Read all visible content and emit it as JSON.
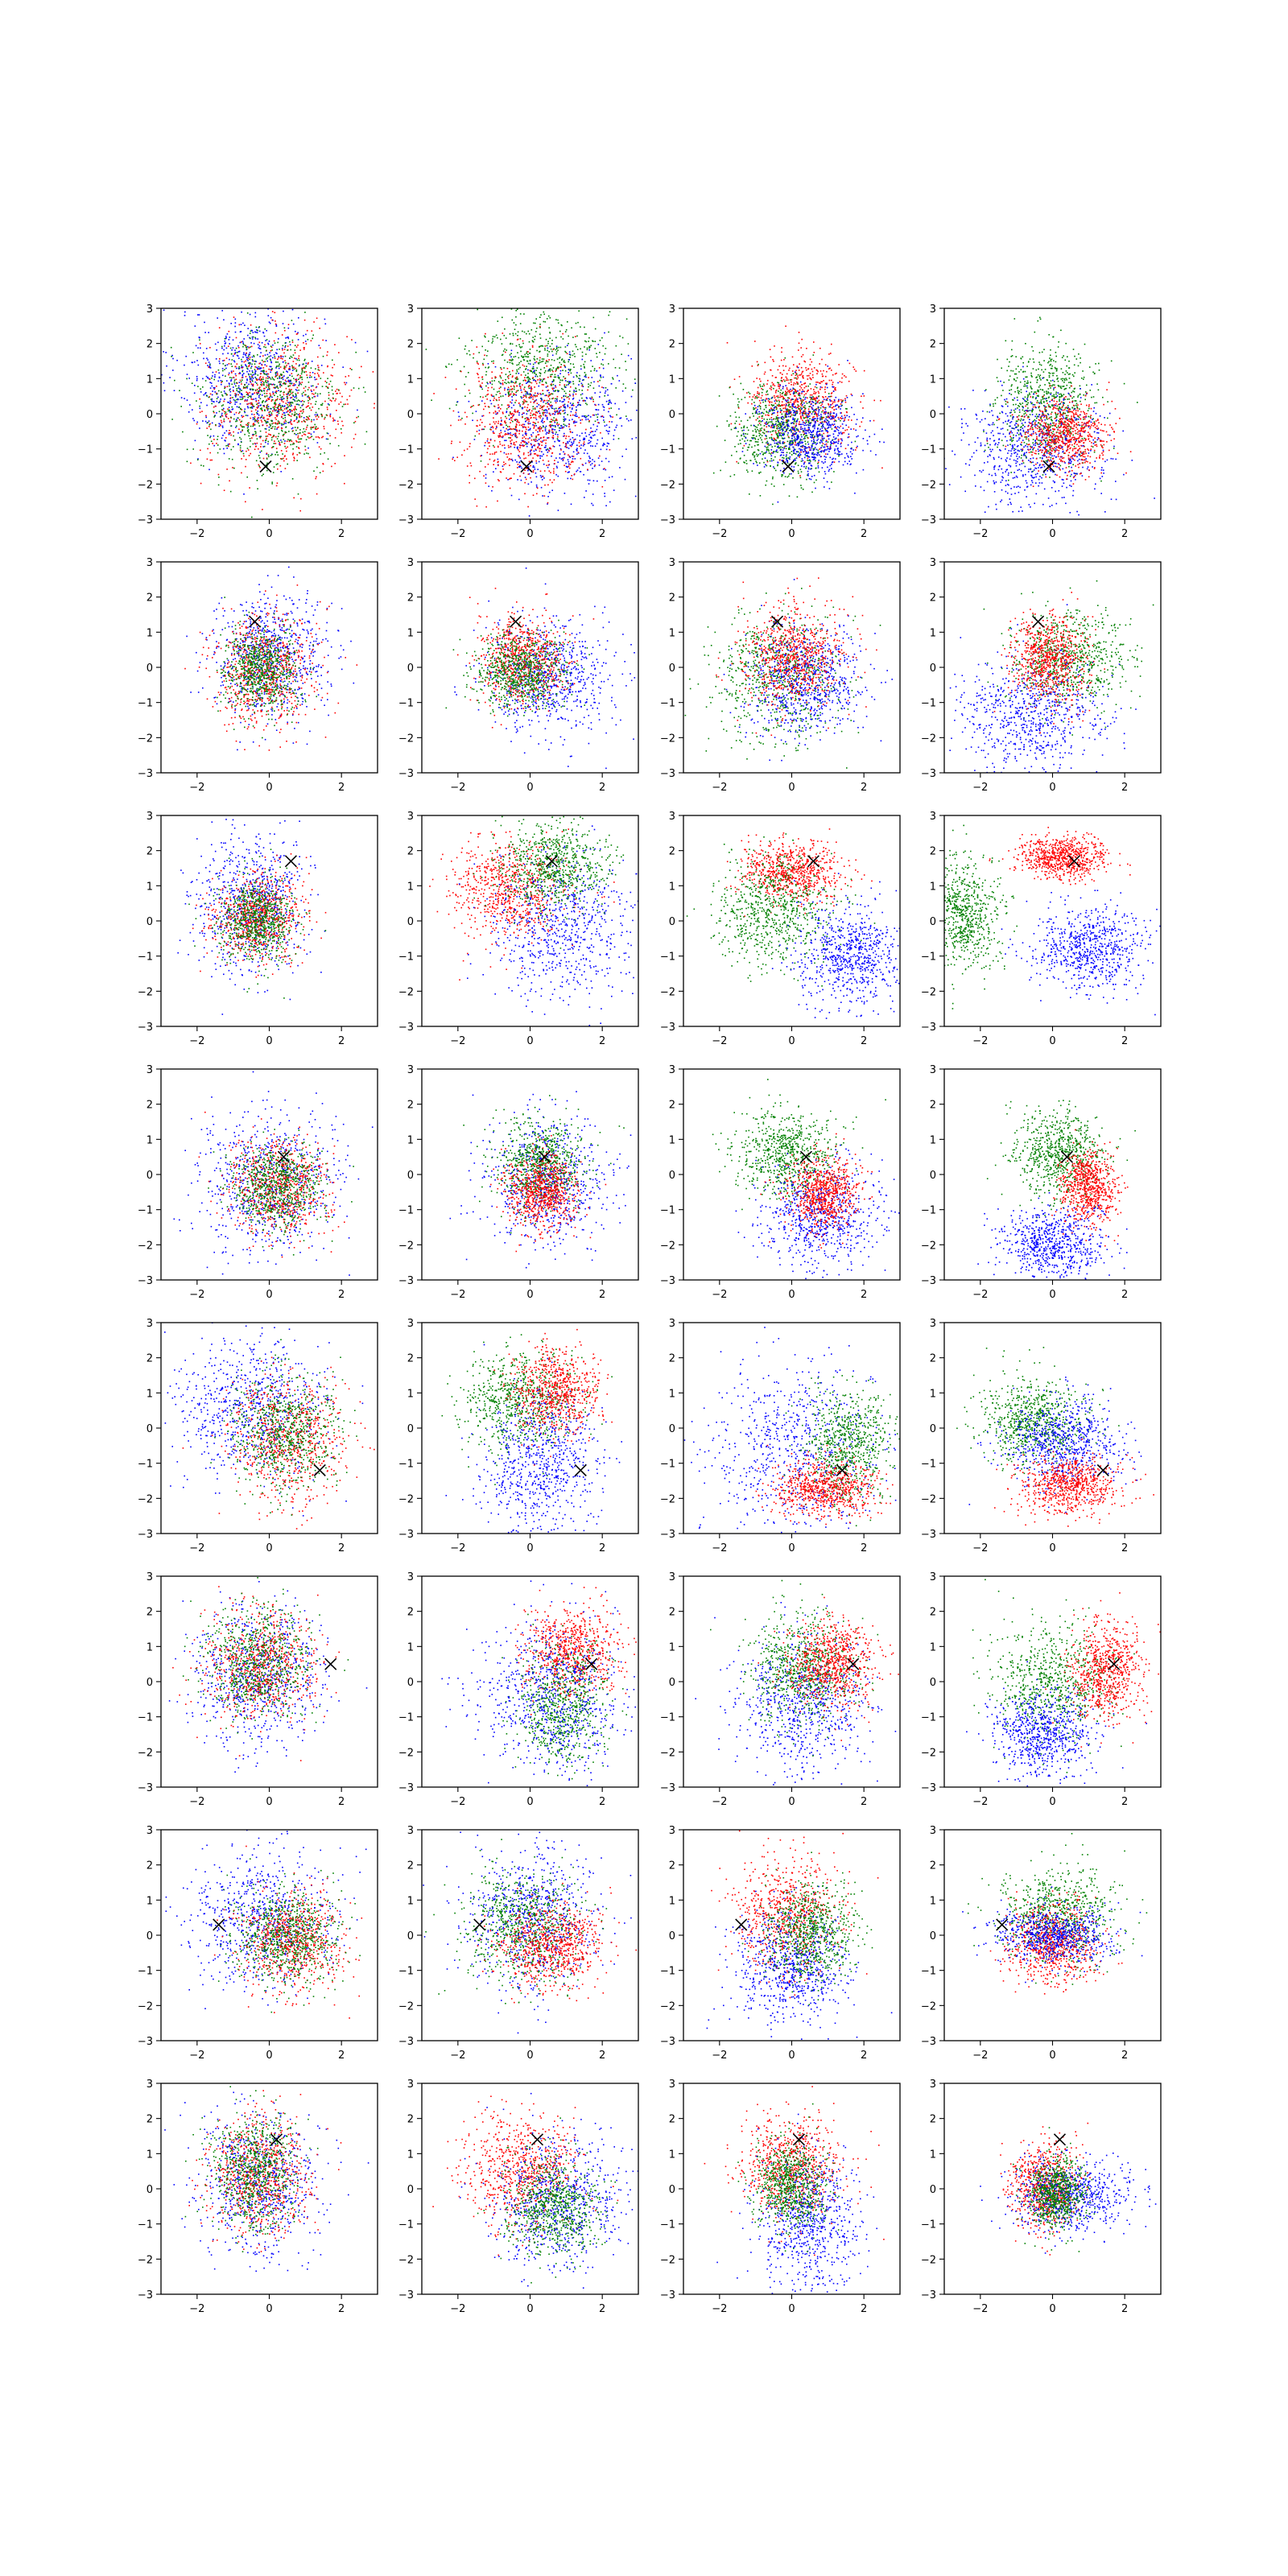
{
  "chart_data": {
    "type": "scatter",
    "layout": {
      "rows": 8,
      "cols": 4
    },
    "xlim": [
      -3,
      3
    ],
    "ylim": [
      -3,
      3
    ],
    "xticks": [
      -2,
      0,
      2
    ],
    "yticks": [
      -3,
      -2,
      -1,
      0,
      1,
      2,
      3
    ],
    "xtick_labels": [
      "−2",
      "0",
      "2"
    ],
    "ytick_labels": [
      "−3",
      "−2",
      "−1",
      "0",
      "1",
      "2",
      "3"
    ],
    "series_colors": {
      "blue": "#0000ff",
      "green": "#008000",
      "red": "#ff0000",
      "marker": "#000000"
    },
    "points_per_cluster": 700,
    "rows": [
      {
        "marker": [
          -0.1,
          -1.5
        ],
        "panels": [
          [
            {
              "color": "blue",
              "cx": -0.5,
              "cy": 1.0,
              "sx": 1.0,
              "sy": 1.0
            },
            {
              "color": "red",
              "cx": 0.3,
              "cy": 0.3,
              "sx": 1.0,
              "sy": 1.0
            },
            {
              "color": "green",
              "cx": 0.0,
              "cy": 0.3,
              "sx": 1.0,
              "sy": 1.0
            }
          ],
          [
            {
              "color": "green",
              "cx": 0.3,
              "cy": 1.3,
              "sx": 1.0,
              "sy": 0.9
            },
            {
              "color": "blue",
              "cx": 0.8,
              "cy": -0.4,
              "sx": 1.0,
              "sy": 0.9
            },
            {
              "color": "red",
              "cx": -0.1,
              "cy": -0.2,
              "sx": 0.9,
              "sy": 0.9
            }
          ],
          [
            {
              "color": "red",
              "cx": 0.3,
              "cy": 0.3,
              "sx": 0.7,
              "sy": 0.7
            },
            {
              "color": "green",
              "cx": -0.3,
              "cy": -0.5,
              "sx": 0.7,
              "sy": 0.7
            },
            {
              "color": "blue",
              "cx": 0.5,
              "cy": -0.6,
              "sx": 0.7,
              "sy": 0.6
            }
          ],
          [
            {
              "color": "green",
              "cx": -0.2,
              "cy": 0.3,
              "sx": 0.7,
              "sy": 0.8
            },
            {
              "color": "blue",
              "cx": -0.5,
              "cy": -1.0,
              "sx": 1.0,
              "sy": 0.8
            },
            {
              "color": "red",
              "cx": 0.3,
              "cy": -0.6,
              "sx": 0.6,
              "sy": 0.5
            }
          ]
        ]
      },
      {
        "marker": [
          -0.4,
          1.3
        ],
        "panels": [
          [
            {
              "color": "blue",
              "cx": 0.0,
              "cy": 0.3,
              "sx": 0.8,
              "sy": 0.9
            },
            {
              "color": "red",
              "cx": -0.2,
              "cy": -0.1,
              "sx": 0.7,
              "sy": 0.8
            },
            {
              "color": "green",
              "cx": -0.2,
              "cy": -0.1,
              "sx": 0.5,
              "sy": 0.6
            }
          ],
          [
            {
              "color": "blue",
              "cx": 0.5,
              "cy": -0.3,
              "sx": 0.9,
              "sy": 0.8
            },
            {
              "color": "red",
              "cx": -0.2,
              "cy": 0.2,
              "sx": 0.6,
              "sy": 0.6
            },
            {
              "color": "green",
              "cx": -0.3,
              "cy": -0.1,
              "sx": 0.6,
              "sy": 0.5
            }
          ],
          [
            {
              "color": "green",
              "cx": -0.4,
              "cy": -0.3,
              "sx": 0.9,
              "sy": 0.9
            },
            {
              "color": "blue",
              "cx": 0.3,
              "cy": -0.4,
              "sx": 0.8,
              "sy": 0.8
            },
            {
              "color": "red",
              "cx": 0.0,
              "cy": 0.3,
              "sx": 0.7,
              "sy": 0.7
            }
          ],
          [
            {
              "color": "green",
              "cx": 0.5,
              "cy": 0.2,
              "sx": 0.8,
              "sy": 0.7
            },
            {
              "color": "blue",
              "cx": -0.6,
              "cy": -1.3,
              "sx": 1.0,
              "sy": 0.8
            },
            {
              "color": "red",
              "cx": -0.1,
              "cy": 0.2,
              "sx": 0.5,
              "sy": 0.6
            }
          ]
        ]
      },
      {
        "marker": [
          0.6,
          1.7
        ],
        "panels": [
          [
            {
              "color": "blue",
              "cx": -0.5,
              "cy": 0.5,
              "sx": 0.8,
              "sy": 1.0
            },
            {
              "color": "red",
              "cx": -0.3,
              "cy": 0.1,
              "sx": 0.6,
              "sy": 0.6
            },
            {
              "color": "green",
              "cx": -0.3,
              "cy": 0.0,
              "sx": 0.5,
              "sy": 0.6
            }
          ],
          [
            {
              "color": "red",
              "cx": -0.6,
              "cy": 0.9,
              "sx": 0.8,
              "sy": 0.7
            },
            {
              "color": "blue",
              "cx": 1.0,
              "cy": -0.2,
              "sx": 1.0,
              "sy": 1.0
            },
            {
              "color": "green",
              "cx": 0.6,
              "cy": 1.6,
              "sx": 0.7,
              "sy": 0.6
            }
          ],
          [
            {
              "color": "red",
              "cx": 0.0,
              "cy": 1.4,
              "sx": 0.7,
              "sy": 0.4
            },
            {
              "color": "green",
              "cx": -0.5,
              "cy": 0.3,
              "sx": 0.8,
              "sy": 0.8
            },
            {
              "color": "blue",
              "cx": 1.6,
              "cy": -1.0,
              "sx": 0.7,
              "sy": 0.7
            }
          ],
          [
            {
              "color": "red",
              "cx": 0.3,
              "cy": 1.8,
              "sx": 0.6,
              "sy": 0.3
            },
            {
              "color": "green",
              "cx": -2.5,
              "cy": 0.2,
              "sx": 0.5,
              "sy": 0.8
            },
            {
              "color": "blue",
              "cx": 1.0,
              "cy": -0.8,
              "sx": 0.8,
              "sy": 0.6
            }
          ]
        ]
      },
      {
        "marker": [
          0.4,
          0.5
        ],
        "panels": [
          [
            {
              "color": "blue",
              "cx": 0.0,
              "cy": -0.2,
              "sx": 1.0,
              "sy": 1.0
            },
            {
              "color": "red",
              "cx": 0.3,
              "cy": -0.3,
              "sx": 0.7,
              "sy": 0.7
            },
            {
              "color": "green",
              "cx": 0.2,
              "cy": -0.3,
              "sx": 0.6,
              "sy": 0.6
            }
          ],
          [
            {
              "color": "blue",
              "cx": 0.5,
              "cy": -0.3,
              "sx": 0.9,
              "sy": 0.9
            },
            {
              "color": "green",
              "cx": 0.3,
              "cy": 0.3,
              "sx": 0.6,
              "sy": 0.6
            },
            {
              "color": "red",
              "cx": 0.3,
              "cy": -0.5,
              "sx": 0.5,
              "sy": 0.5
            }
          ],
          [
            {
              "color": "green",
              "cx": -0.2,
              "cy": 0.6,
              "sx": 0.7,
              "sy": 0.6
            },
            {
              "color": "blue",
              "cx": 0.8,
              "cy": -1.2,
              "sx": 0.8,
              "sy": 0.7
            },
            {
              "color": "red",
              "cx": 0.9,
              "cy": -0.5,
              "sx": 0.5,
              "sy": 0.5
            }
          ],
          [
            {
              "color": "green",
              "cx": 0.2,
              "cy": 0.6,
              "sx": 0.6,
              "sy": 0.6
            },
            {
              "color": "red",
              "cx": 1.0,
              "cy": -0.4,
              "sx": 0.4,
              "sy": 0.5
            },
            {
              "color": "blue",
              "cx": 0.0,
              "cy": -2.0,
              "sx": 0.7,
              "sy": 0.5
            }
          ]
        ]
      },
      {
        "marker": [
          1.4,
          -1.2
        ],
        "panels": [
          [
            {
              "color": "blue",
              "cx": -0.5,
              "cy": 0.6,
              "sx": 1.0,
              "sy": 1.0
            },
            {
              "color": "red",
              "cx": 0.5,
              "cy": -0.3,
              "sx": 0.8,
              "sy": 0.9
            },
            {
              "color": "green",
              "cx": 0.4,
              "cy": -0.1,
              "sx": 0.7,
              "sy": 0.8
            }
          ],
          [
            {
              "color": "green",
              "cx": -0.3,
              "cy": 0.8,
              "sx": 0.8,
              "sy": 0.7
            },
            {
              "color": "red",
              "cx": 0.7,
              "cy": 1.0,
              "sx": 0.6,
              "sy": 0.6
            },
            {
              "color": "blue",
              "cx": 0.3,
              "cy": -1.1,
              "sx": 0.8,
              "sy": 1.0
            }
          ],
          [
            {
              "color": "blue",
              "cx": 0.0,
              "cy": -0.7,
              "sx": 1.2,
              "sy": 1.3
            },
            {
              "color": "green",
              "cx": 1.6,
              "cy": -0.5,
              "sx": 0.6,
              "sy": 0.8
            },
            {
              "color": "red",
              "cx": 0.9,
              "cy": -1.7,
              "sx": 0.7,
              "sy": 0.4
            }
          ],
          [
            {
              "color": "green",
              "cx": -0.5,
              "cy": 0.2,
              "sx": 0.7,
              "sy": 0.6
            },
            {
              "color": "blue",
              "cx": 0.3,
              "cy": -0.4,
              "sx": 0.8,
              "sy": 0.6
            },
            {
              "color": "red",
              "cx": 0.5,
              "cy": -1.6,
              "sx": 0.7,
              "sy": 0.4
            }
          ]
        ]
      },
      {
        "marker": [
          1.7,
          0.5
        ],
        "panels": [
          [
            {
              "color": "blue",
              "cx": -0.3,
              "cy": 0.2,
              "sx": 0.9,
              "sy": 1.0
            },
            {
              "color": "red",
              "cx": -0.2,
              "cy": 0.5,
              "sx": 0.8,
              "sy": 0.8
            },
            {
              "color": "green",
              "cx": -0.3,
              "cy": 0.6,
              "sx": 0.7,
              "sy": 0.8
            }
          ],
          [
            {
              "color": "red",
              "cx": 1.2,
              "cy": 0.9,
              "sx": 0.6,
              "sy": 0.6
            },
            {
              "color": "green",
              "cx": 0.9,
              "cy": -0.7,
              "sx": 0.6,
              "sy": 0.8
            },
            {
              "color": "blue",
              "cx": 0.6,
              "cy": -0.5,
              "sx": 1.0,
              "sy": 1.1
            }
          ],
          [
            {
              "color": "blue",
              "cx": 0.3,
              "cy": -0.7,
              "sx": 0.9,
              "sy": 1.0
            },
            {
              "color": "green",
              "cx": 0.3,
              "cy": 0.4,
              "sx": 0.7,
              "sy": 0.8
            },
            {
              "color": "red",
              "cx": 1.1,
              "cy": 0.5,
              "sx": 0.6,
              "sy": 0.6
            }
          ],
          [
            {
              "color": "green",
              "cx": 0.0,
              "cy": 0.0,
              "sx": 0.8,
              "sy": 0.8
            },
            {
              "color": "blue",
              "cx": -0.3,
              "cy": -1.5,
              "sx": 0.7,
              "sy": 0.6
            },
            {
              "color": "red",
              "cx": 1.5,
              "cy": 0.3,
              "sx": 0.5,
              "sy": 0.7
            }
          ]
        ]
      },
      {
        "marker": [
          -1.4,
          0.3
        ],
        "panels": [
          [
            {
              "color": "blue",
              "cx": -0.3,
              "cy": 0.5,
              "sx": 1.0,
              "sy": 1.0
            },
            {
              "color": "red",
              "cx": 0.6,
              "cy": -0.2,
              "sx": 0.7,
              "sy": 0.7
            },
            {
              "color": "green",
              "cx": 0.5,
              "cy": 0.0,
              "sx": 0.7,
              "sy": 0.7
            }
          ],
          [
            {
              "color": "blue",
              "cx": 0.0,
              "cy": 0.5,
              "sx": 0.9,
              "sy": 1.0
            },
            {
              "color": "green",
              "cx": -0.2,
              "cy": 0.3,
              "sx": 0.8,
              "sy": 0.8
            },
            {
              "color": "red",
              "cx": 0.6,
              "cy": -0.3,
              "sx": 0.7,
              "sy": 0.6
            }
          ],
          [
            {
              "color": "red",
              "cx": -0.1,
              "cy": 0.6,
              "sx": 0.7,
              "sy": 0.8
            },
            {
              "color": "blue",
              "cx": 0.0,
              "cy": -0.9,
              "sx": 0.8,
              "sy": 0.8
            },
            {
              "color": "green",
              "cx": 0.5,
              "cy": 0.1,
              "sx": 0.6,
              "sy": 0.7
            }
          ],
          [
            {
              "color": "green",
              "cx": 0.2,
              "cy": 0.6,
              "sx": 0.8,
              "sy": 0.7
            },
            {
              "color": "red",
              "cx": 0.0,
              "cy": -0.2,
              "sx": 0.6,
              "sy": 0.6
            },
            {
              "color": "blue",
              "cx": 0.0,
              "cy": 0.0,
              "sx": 0.8,
              "sy": 0.4
            }
          ]
        ]
      },
      {
        "marker": [
          0.2,
          1.4
        ],
        "panels": [
          [
            {
              "color": "blue",
              "cx": -0.3,
              "cy": 0.2,
              "sx": 0.8,
              "sy": 1.0
            },
            {
              "color": "red",
              "cx": -0.3,
              "cy": 0.4,
              "sx": 0.7,
              "sy": 0.8
            },
            {
              "color": "green",
              "cx": -0.4,
              "cy": 0.5,
              "sx": 0.6,
              "sy": 0.8
            }
          ],
          [
            {
              "color": "red",
              "cx": -0.2,
              "cy": 0.5,
              "sx": 0.8,
              "sy": 0.8
            },
            {
              "color": "blue",
              "cx": 0.8,
              "cy": -0.4,
              "sx": 0.9,
              "sy": 0.9
            },
            {
              "color": "green",
              "cx": 0.6,
              "cy": -0.5,
              "sx": 0.6,
              "sy": 0.7
            }
          ],
          [
            {
              "color": "red",
              "cx": 0.0,
              "cy": 0.6,
              "sx": 0.7,
              "sy": 0.7
            },
            {
              "color": "blue",
              "cx": 0.5,
              "cy": -1.0,
              "sx": 0.7,
              "sy": 1.0
            },
            {
              "color": "green",
              "cx": 0.0,
              "cy": 0.1,
              "sx": 0.5,
              "sy": 0.6
            }
          ],
          [
            {
              "color": "red",
              "cx": -0.2,
              "cy": 0.0,
              "sx": 0.5,
              "sy": 0.6
            },
            {
              "color": "blue",
              "cx": 0.5,
              "cy": -0.2,
              "sx": 0.8,
              "sy": 0.5
            },
            {
              "color": "green",
              "cx": 0.1,
              "cy": -0.1,
              "sx": 0.4,
              "sy": 0.5
            }
          ]
        ]
      }
    ]
  }
}
